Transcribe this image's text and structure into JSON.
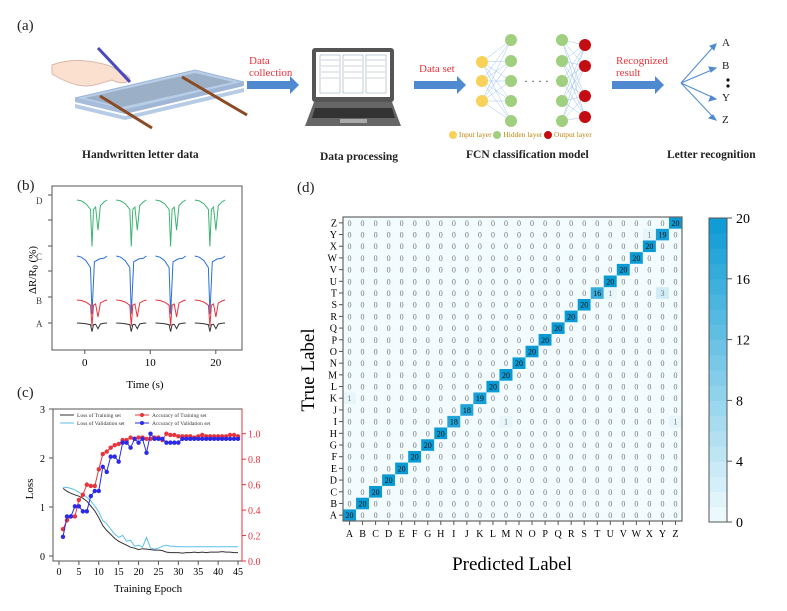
{
  "panel_a": {
    "label": "(a)",
    "captions": [
      "Handwritten letter data",
      "Data processing",
      "FCN classification model",
      "Letter recognition"
    ],
    "arrows": [
      "Data collection",
      "Data set",
      "Recognized result"
    ],
    "arrow_lines": [
      [
        "Data",
        "collection"
      ],
      [
        "Data set"
      ],
      [
        "Recognized",
        "result"
      ]
    ],
    "legend": [
      "Input layer",
      "Hidden layer",
      "Output layer"
    ],
    "outputs": [
      "A",
      "B",
      "Y",
      "Z"
    ],
    "layer_colors": {
      "input": "#f7d158",
      "hidden": "#9fcf7f",
      "output": "#c40d12"
    },
    "ellipsis": "· · · ·"
  },
  "chart_data": [
    {
      "id": "b",
      "type": "line",
      "label": "(b)",
      "title": "",
      "xlabel": "Time (s)",
      "ylabel": "ΔR/R0 (%)",
      "xlim": [
        -5,
        24
      ],
      "xticks": [
        0,
        10,
        20
      ],
      "series_labels": [
        "D",
        "C",
        "B",
        "A"
      ],
      "series_colors": [
        "#3cb371",
        "#2b6fd6",
        "#e8343c",
        "#333333"
      ],
      "series_amplitudes": [
        0.8,
        1.0,
        0.45,
        0.15
      ],
      "cycle_starts": [
        0,
        6,
        12,
        18
      ],
      "grid": false
    },
    {
      "id": "c",
      "type": "line",
      "label": "(c)",
      "xlabel": "Training Epoch",
      "ylabel": "Loss",
      "xlim": [
        0,
        46
      ],
      "ylim_left": [
        0,
        3
      ],
      "ylim_right": [
        0,
        1.2
      ],
      "xticks": [
        0,
        5,
        10,
        15,
        20,
        25,
        30,
        35,
        40,
        45
      ],
      "yticks_left": [
        0,
        1,
        2,
        3
      ],
      "yticks_right": [
        "0.0",
        "0.2",
        "0.4",
        "0.6",
        "0.8",
        "1.0"
      ],
      "legend": [
        "Loss of Training set",
        "Loss of Validation set",
        "Accuracy of Training set",
        "Accuracy of Validation set"
      ],
      "legend_position": "top",
      "series": [
        {
          "name": "Loss of Training set",
          "axis": "left",
          "color": "#333333",
          "x": [
            1,
            2,
            3,
            4,
            5,
            6,
            7,
            8,
            9,
            10,
            11,
            12,
            13,
            14,
            15,
            16,
            17,
            18,
            19,
            20,
            21,
            22,
            23,
            24,
            25,
            26,
            27,
            28,
            29,
            30,
            31,
            32,
            33,
            34,
            35,
            36,
            37,
            38,
            39,
            40,
            41,
            42,
            43,
            44,
            45
          ],
          "values": [
            1.38,
            1.32,
            1.28,
            1.25,
            1.22,
            1.18,
            1.12,
            1.02,
            0.92,
            0.78,
            0.62,
            0.52,
            0.44,
            0.36,
            0.3,
            0.26,
            0.22,
            0.18,
            0.16,
            0.13,
            0.15,
            0.14,
            0.13,
            0.12,
            0.12,
            0.11,
            0.08,
            0.07,
            0.07,
            0.07,
            0.06,
            0.07,
            0.07,
            0.08,
            0.07,
            0.08,
            0.07,
            0.08,
            0.08,
            0.08,
            0.09,
            0.08,
            0.08,
            0.07,
            0.07
          ]
        },
        {
          "name": "Loss of Validation set",
          "axis": "left",
          "color": "#5bc0eb",
          "x": [
            1,
            2,
            3,
            4,
            5,
            6,
            7,
            8,
            9,
            10,
            11,
            12,
            13,
            14,
            15,
            16,
            17,
            18,
            19,
            20,
            21,
            22,
            23,
            24,
            25,
            26,
            27,
            28,
            29,
            30,
            31,
            32,
            33,
            34,
            35,
            36,
            37,
            38,
            39,
            40,
            41,
            42,
            43,
            44,
            45
          ],
          "values": [
            1.4,
            1.4,
            1.38,
            1.35,
            1.3,
            1.26,
            1.2,
            1.12,
            1.02,
            0.9,
            0.72,
            0.66,
            0.55,
            0.45,
            0.38,
            0.42,
            0.3,
            0.32,
            0.2,
            0.22,
            0.18,
            0.38,
            0.16,
            0.14,
            0.16,
            0.2,
            0.22,
            0.2,
            0.2,
            0.19,
            0.19,
            0.19,
            0.19,
            0.19,
            0.19,
            0.19,
            0.19,
            0.19,
            0.19,
            0.19,
            0.19,
            0.19,
            0.19,
            0.19,
            0.19
          ]
        },
        {
          "name": "Accuracy of Training set",
          "axis": "right",
          "color": "#e8343c",
          "x": [
            1,
            2,
            3,
            4,
            5,
            6,
            7,
            8,
            9,
            10,
            11,
            12,
            13,
            14,
            15,
            16,
            17,
            18,
            19,
            20,
            21,
            22,
            23,
            24,
            25,
            26,
            27,
            28,
            29,
            30,
            31,
            32,
            33,
            34,
            35,
            36,
            37,
            38,
            39,
            40,
            41,
            42,
            43,
            44,
            45
          ],
          "values": [
            0.25,
            0.32,
            0.35,
            0.35,
            0.48,
            0.52,
            0.6,
            0.59,
            0.59,
            0.72,
            0.84,
            0.86,
            0.89,
            0.91,
            0.92,
            0.95,
            0.95,
            0.97,
            0.96,
            0.97,
            0.97,
            0.96,
            0.96,
            0.97,
            0.97,
            0.95,
            1.0,
            0.99,
            0.99,
            0.98,
            0.98,
            0.98,
            0.98,
            0.97,
            0.98,
            0.99,
            0.98,
            0.98,
            0.98,
            0.98,
            0.98,
            0.98,
            0.99,
            0.99,
            0.98
          ]
        },
        {
          "name": "Accuracy of Validation set",
          "axis": "right",
          "color": "#2a2ae8",
          "x": [
            1,
            2,
            3,
            4,
            5,
            6,
            7,
            8,
            9,
            10,
            11,
            12,
            13,
            14,
            15,
            16,
            17,
            18,
            19,
            20,
            21,
            22,
            23,
            24,
            25,
            26,
            27,
            28,
            29,
            30,
            31,
            32,
            33,
            34,
            35,
            36,
            37,
            38,
            39,
            40,
            41,
            42,
            43,
            44,
            45
          ],
          "values": [
            0.19,
            0.35,
            0.35,
            0.43,
            0.43,
            0.39,
            0.39,
            0.51,
            0.55,
            0.55,
            0.74,
            0.7,
            0.82,
            0.82,
            0.78,
            0.93,
            0.93,
            0.89,
            0.96,
            0.93,
            0.96,
            0.85,
            1.0,
            0.96,
            0.96,
            0.96,
            0.93,
            0.93,
            0.93,
            0.93,
            0.96,
            0.96,
            0.96,
            0.96,
            0.96,
            0.96,
            0.96,
            0.96,
            0.96,
            0.96,
            0.96,
            0.96,
            0.96,
            0.96,
            0.96
          ]
        }
      ]
    },
    {
      "id": "d",
      "type": "heatmap",
      "label": "(d)",
      "title": "",
      "xlabel": "Predicted Label",
      "ylabel": "True Label",
      "labels": [
        "A",
        "B",
        "C",
        "D",
        "E",
        "F",
        "G",
        "H",
        "I",
        "J",
        "K",
        "L",
        "M",
        "N",
        "O",
        "P",
        "Q",
        "R",
        "S",
        "T",
        "U",
        "V",
        "W",
        "X",
        "Y",
        "Z"
      ],
      "diagonal": [
        20,
        20,
        20,
        20,
        20,
        20,
        20,
        20,
        18,
        18,
        19,
        20,
        20,
        20,
        20,
        20,
        20,
        20,
        20,
        16,
        20,
        20,
        20,
        20,
        19,
        20
      ],
      "off_diagonal": [
        {
          "true": "I",
          "pred": "M",
          "value": 1
        },
        {
          "true": "I",
          "pred": "Z",
          "value": 1
        },
        {
          "true": "K",
          "pred": "A",
          "value": 1
        },
        {
          "true": "T",
          "pred": "U",
          "value": 1
        },
        {
          "true": "T",
          "pred": "Y",
          "value": 3
        },
        {
          "true": "Y",
          "pred": "X",
          "value": 1
        }
      ],
      "colorbar": {
        "min": 0,
        "max": 20,
        "ticks": [
          0,
          4,
          8,
          12,
          16,
          20
        ],
        "low_color": "#f2fbfd",
        "high_color": "#0a9ad4"
      }
    }
  ]
}
